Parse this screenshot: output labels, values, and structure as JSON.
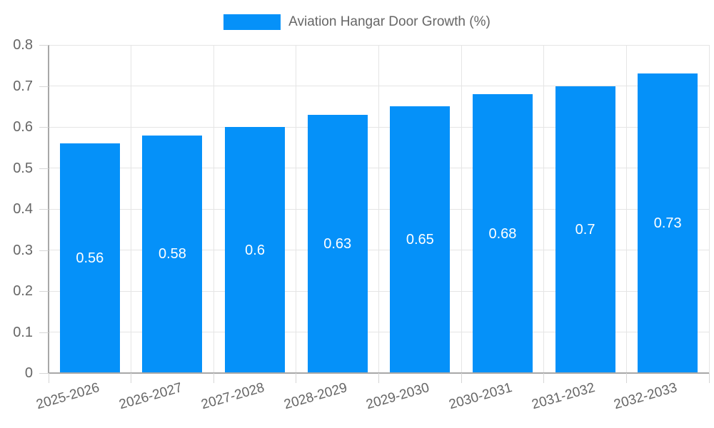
{
  "legend": {
    "label": "Aviation Hangar Door Growth (%)"
  },
  "colors": {
    "bar": "#0591f9",
    "bar_value_text": "#ffffff",
    "grid": "#e5e5e5",
    "tick": "#d6d6d6",
    "axis": "#a8a8a8",
    "text": "#666666",
    "background": "#ffffff"
  },
  "chart_data": {
    "type": "bar",
    "title": "Aviation Hangar Door Growth (%)",
    "categories": [
      "2025-2026",
      "2026-2027",
      "2027-2028",
      "2028-2029",
      "2029-2030",
      "2030-2031",
      "2031-2032",
      "2032-2033"
    ],
    "values": [
      0.56,
      0.58,
      0.6,
      0.63,
      0.65,
      0.68,
      0.7,
      0.73
    ],
    "value_labels": [
      "0.56",
      "0.58",
      "0.6",
      "0.63",
      "0.65",
      "0.68",
      "0.7",
      "0.73"
    ],
    "series": [
      {
        "name": "Aviation Hangar Door Growth (%)",
        "values": [
          0.56,
          0.58,
          0.6,
          0.63,
          0.65,
          0.68,
          0.7,
          0.73
        ]
      }
    ],
    "xlabel": "",
    "ylabel": "",
    "ylim": [
      0,
      0.8
    ],
    "ytick_values": [
      0,
      0.1,
      0.2,
      0.3,
      0.4,
      0.5,
      0.6,
      0.7,
      0.8
    ],
    "ytick_labels": [
      "0",
      "0.1",
      "0.2",
      "0.3",
      "0.4",
      "0.5",
      "0.6",
      "0.7",
      "0.8"
    ],
    "grid": true,
    "legend_position": "top",
    "x_label_rotation_deg": -16,
    "value_label_position": "center-inside"
  }
}
